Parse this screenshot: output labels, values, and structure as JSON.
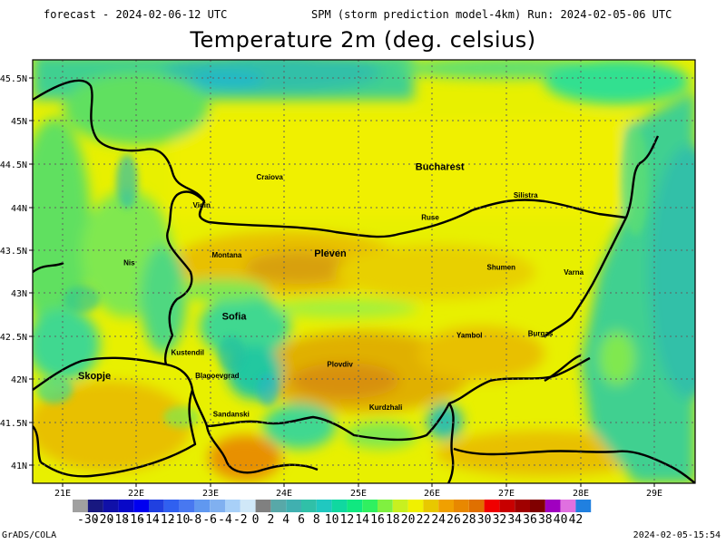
{
  "header": {
    "forecast": "forecast - 2024-02-06-12 UTC",
    "model_run": "SPM (storm prediction model-4km) Run: 2024-02-05-06 UTC",
    "title": "Temperature 2m (deg. celsius)"
  },
  "axes": {
    "lon_labels": [
      "21E",
      "22E",
      "23E",
      "24E",
      "25E",
      "26E",
      "27E",
      "28E",
      "29E"
    ],
    "lat_labels": [
      "45.5N",
      "45N",
      "44.5N",
      "44N",
      "43.5N",
      "43N",
      "42.5N",
      "42N",
      "41.5N",
      "41N"
    ]
  },
  "cities": [
    {
      "name": "Craiova",
      "lon": 23.8,
      "lat": 44.32
    },
    {
      "name": "Bucharest",
      "lon": 26.1,
      "lat": 44.43
    },
    {
      "name": "Silistra",
      "lon": 27.26,
      "lat": 44.11
    },
    {
      "name": "Vidin",
      "lon": 22.88,
      "lat": 43.99
    },
    {
      "name": "Ruse",
      "lon": 25.97,
      "lat": 43.85
    },
    {
      "name": "Montana",
      "lon": 23.22,
      "lat": 43.41
    },
    {
      "name": "Pleven",
      "lon": 24.62,
      "lat": 43.42
    },
    {
      "name": "Nis",
      "lon": 21.9,
      "lat": 43.32
    },
    {
      "name": "Shumen",
      "lon": 26.93,
      "lat": 43.27
    },
    {
      "name": "Varna",
      "lon": 27.91,
      "lat": 43.21
    },
    {
      "name": "Sofia",
      "lon": 23.32,
      "lat": 42.69
    },
    {
      "name": "Yambol",
      "lon": 26.5,
      "lat": 42.48
    },
    {
      "name": "Burgas",
      "lon": 27.46,
      "lat": 42.5
    },
    {
      "name": "Kustendil",
      "lon": 22.69,
      "lat": 42.28
    },
    {
      "name": "Blagoevgrad",
      "lon": 23.09,
      "lat": 42.01
    },
    {
      "name": "Plovdiv",
      "lon": 24.75,
      "lat": 42.14
    },
    {
      "name": "Skopje",
      "lon": 21.43,
      "lat": 42.0
    },
    {
      "name": "Kurdzhali",
      "lon": 25.37,
      "lat": 41.64
    },
    {
      "name": "Sandanski",
      "lon": 23.28,
      "lat": 41.56
    }
  ],
  "colorbar": {
    "labels": [
      "-30",
      "-20",
      "-18",
      "-16",
      "-14",
      "-12",
      "-10",
      "-8",
      "-6",
      "-4",
      "-2",
      "0",
      "2",
      "4",
      "6",
      "8",
      "10",
      "12",
      "14",
      "16",
      "18",
      "20",
      "22",
      "24",
      "26",
      "28",
      "30",
      "32",
      "34",
      "36",
      "38",
      "40",
      "42"
    ],
    "colors": [
      "#a0a0a0",
      "#181880",
      "#1010a8",
      "#0808c8",
      "#0000f0",
      "#2040e0",
      "#3060f0",
      "#4878f0",
      "#6098f0",
      "#80b0f0",
      "#a8d0f8",
      "#d0e8f8",
      "#808080",
      "#58a8a8",
      "#40b0b0",
      "#30c0a8",
      "#20c8c0",
      "#10d8a0",
      "#10e880",
      "#30f060",
      "#80f040",
      "#c8f020",
      "#f0f000",
      "#e8c800",
      "#f0a000",
      "#e88800",
      "#e07000",
      "#f00000",
      "#c80000",
      "#a00000",
      "#800000",
      "#a000c0",
      "#e070e0",
      "#2080e0"
    ]
  },
  "footer": {
    "left": "GrADS/COLA",
    "right": "2024-02-05-15:54"
  }
}
